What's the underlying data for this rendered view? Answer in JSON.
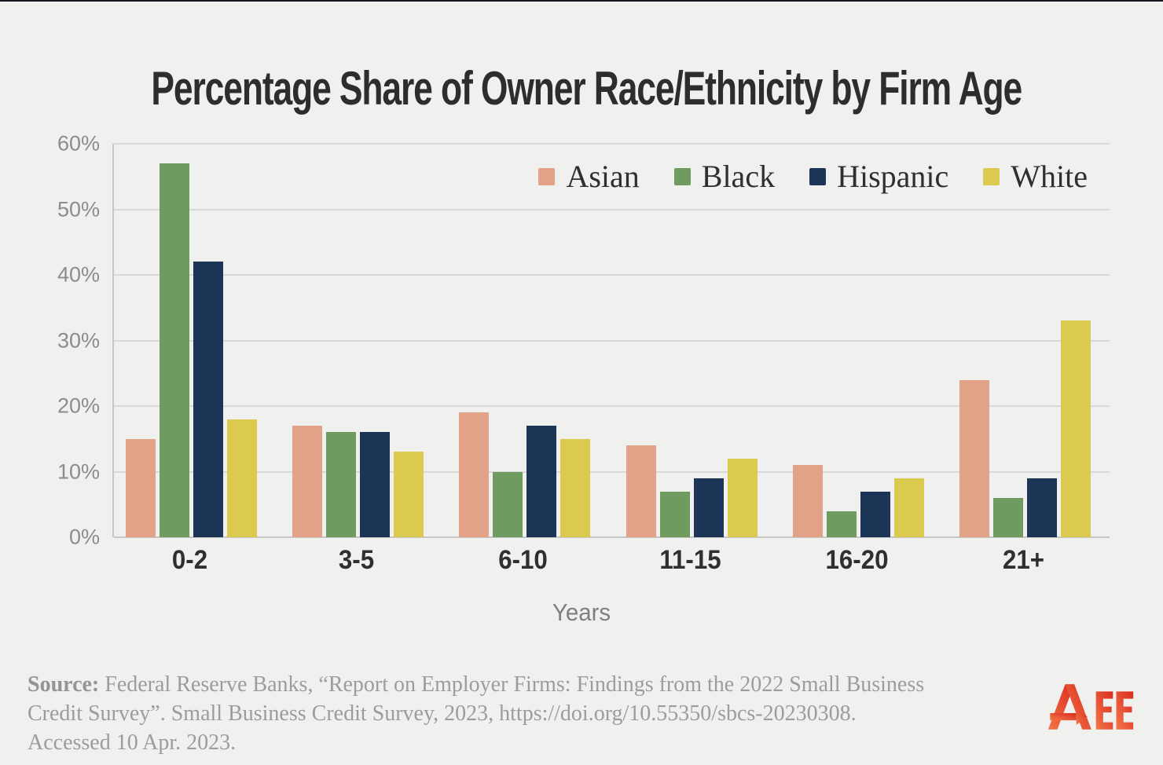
{
  "title": "Percentage Share of Owner Race/Ethnicity by Firm Age",
  "chart_data": {
    "type": "bar",
    "title": "Percentage Share of Owner Race/Ethnicity by Firm Age",
    "categories": [
      "0-2",
      "3-5",
      "6-10",
      "11-15",
      "16-20",
      "21+"
    ],
    "series": [
      {
        "name": "Asian",
        "color": "#E2A287",
        "values": [
          15,
          17,
          19,
          14,
          11,
          24
        ]
      },
      {
        "name": "Black",
        "color": "#6F9A60",
        "values": [
          57,
          16,
          10,
          7,
          4,
          6
        ]
      },
      {
        "name": "Hispanic",
        "color": "#1C3557",
        "values": [
          42,
          16,
          17,
          9,
          7,
          9
        ]
      },
      {
        "name": "White",
        "color": "#DCC94F",
        "values": [
          18,
          13,
          15,
          12,
          9,
          33
        ]
      }
    ],
    "xlabel": "Years",
    "ylabel": "",
    "ylim": [
      0,
      60
    ],
    "yticks": [
      0,
      10,
      20,
      30,
      40,
      50,
      60
    ],
    "ytick_suffix": "%",
    "grid": true,
    "legend_position": "top-right"
  },
  "colors": {
    "background": "#F0F1EF",
    "gridline": "#d8d9d6",
    "axis_line": "#c6c7c4",
    "title_text": "#2d2d2d",
    "tick_text": "#8c8d8a",
    "category_text": "#2f2f2f",
    "source_text": "#9c9c9a",
    "logo_red_dark": "#D92B1F",
    "logo_red_light": "#F4764A"
  },
  "source": {
    "label": "Source:",
    "line1": " Federal Reserve Banks, “Report on Employer Firms: Findings from the 2022 Small Business",
    "line2": "Credit Survey”. Small Business Credit Survey, 2023, https://doi.org/10.55350/sbcs-20230308.",
    "line3": "Accessed 10 Apr. 2023."
  },
  "logo": {
    "name": "AEE",
    "ee_text": "EE"
  }
}
